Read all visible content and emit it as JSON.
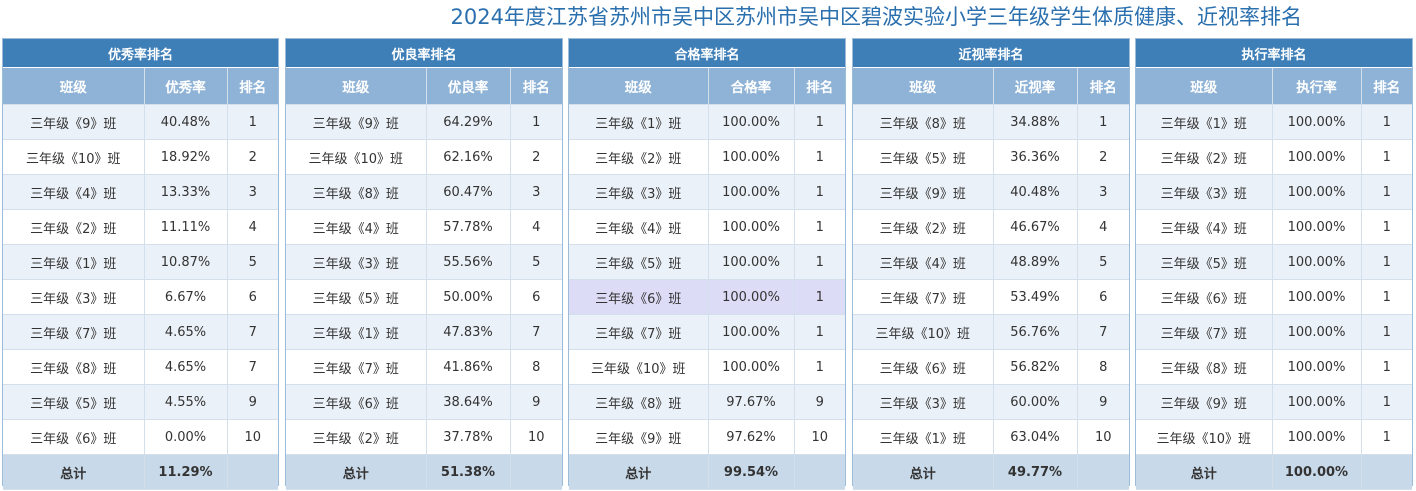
{
  "page_title": "2024年度江苏省苏州市吴中区苏州市吴中区碧波实验小学三年级学生体质健康、近视率排名",
  "panels": [
    {
      "title": "优秀率排名",
      "col_class": "班级",
      "col_rate": "优秀率",
      "col_rank": "排名",
      "rows": [
        {
          "cls": "三年级《9》班",
          "rate": "40.48%",
          "rank": "1"
        },
        {
          "cls": "三年级《10》班",
          "rate": "18.92%",
          "rank": "2"
        },
        {
          "cls": "三年级《4》班",
          "rate": "13.33%",
          "rank": "3"
        },
        {
          "cls": "三年级《2》班",
          "rate": "11.11%",
          "rank": "4"
        },
        {
          "cls": "三年级《1》班",
          "rate": "10.87%",
          "rank": "5"
        },
        {
          "cls": "三年级《3》班",
          "rate": "6.67%",
          "rank": "6"
        },
        {
          "cls": "三年级《7》班",
          "rate": "4.65%",
          "rank": "7"
        },
        {
          "cls": "三年级《8》班",
          "rate": "4.65%",
          "rank": "7"
        },
        {
          "cls": "三年级《5》班",
          "rate": "4.55%",
          "rank": "9"
        },
        {
          "cls": "三年级《6》班",
          "rate": "0.00%",
          "rank": "10"
        }
      ],
      "total_label": "总计",
      "total_value": "11.29%"
    },
    {
      "title": "优良率排名",
      "col_class": "班级",
      "col_rate": "优良率",
      "col_rank": "排名",
      "rows": [
        {
          "cls": "三年级《9》班",
          "rate": "64.29%",
          "rank": "1"
        },
        {
          "cls": "三年级《10》班",
          "rate": "62.16%",
          "rank": "2"
        },
        {
          "cls": "三年级《8》班",
          "rate": "60.47%",
          "rank": "3"
        },
        {
          "cls": "三年级《4》班",
          "rate": "57.78%",
          "rank": "4"
        },
        {
          "cls": "三年级《3》班",
          "rate": "55.56%",
          "rank": "5"
        },
        {
          "cls": "三年级《5》班",
          "rate": "50.00%",
          "rank": "6"
        },
        {
          "cls": "三年级《1》班",
          "rate": "47.83%",
          "rank": "7"
        },
        {
          "cls": "三年级《7》班",
          "rate": "41.86%",
          "rank": "8"
        },
        {
          "cls": "三年级《6》班",
          "rate": "38.64%",
          "rank": "9"
        },
        {
          "cls": "三年级《2》班",
          "rate": "37.78%",
          "rank": "10"
        }
      ],
      "total_label": "总计",
      "total_value": "51.38%"
    },
    {
      "title": "合格率排名",
      "col_class": "班级",
      "col_rate": "合格率",
      "col_rank": "排名",
      "rows": [
        {
          "cls": "三年级《1》班",
          "rate": "100.00%",
          "rank": "1"
        },
        {
          "cls": "三年级《2》班",
          "rate": "100.00%",
          "rank": "1"
        },
        {
          "cls": "三年级《3》班",
          "rate": "100.00%",
          "rank": "1"
        },
        {
          "cls": "三年级《4》班",
          "rate": "100.00%",
          "rank": "1"
        },
        {
          "cls": "三年级《5》班",
          "rate": "100.00%",
          "rank": "1"
        },
        {
          "cls": "三年级《6》班",
          "rate": "100.00%",
          "rank": "1"
        },
        {
          "cls": "三年级《7》班",
          "rate": "100.00%",
          "rank": "1"
        },
        {
          "cls": "三年级《10》班",
          "rate": "100.00%",
          "rank": "1"
        },
        {
          "cls": "三年级《8》班",
          "rate": "97.67%",
          "rank": "9"
        },
        {
          "cls": "三年级《9》班",
          "rate": "97.62%",
          "rank": "10"
        }
      ],
      "total_label": "总计",
      "total_value": "99.54%"
    },
    {
      "title": "近视率排名",
      "col_class": "班级",
      "col_rate": "近视率",
      "col_rank": "排名",
      "rows": [
        {
          "cls": "三年级《8》班",
          "rate": "34.88%",
          "rank": "1"
        },
        {
          "cls": "三年级《5》班",
          "rate": "36.36%",
          "rank": "2"
        },
        {
          "cls": "三年级《9》班",
          "rate": "40.48%",
          "rank": "3"
        },
        {
          "cls": "三年级《2》班",
          "rate": "46.67%",
          "rank": "4"
        },
        {
          "cls": "三年级《4》班",
          "rate": "48.89%",
          "rank": "5"
        },
        {
          "cls": "三年级《7》班",
          "rate": "53.49%",
          "rank": "6"
        },
        {
          "cls": "三年级《10》班",
          "rate": "56.76%",
          "rank": "7"
        },
        {
          "cls": "三年级《6》班",
          "rate": "56.82%",
          "rank": "8"
        },
        {
          "cls": "三年级《3》班",
          "rate": "60.00%",
          "rank": "9"
        },
        {
          "cls": "三年级《1》班",
          "rate": "63.04%",
          "rank": "10"
        }
      ],
      "total_label": "总计",
      "total_value": "49.77%"
    },
    {
      "title": "执行率排名",
      "col_class": "班级",
      "col_rate": "执行率",
      "col_rank": "排名",
      "rows": [
        {
          "cls": "三年级《1》班",
          "rate": "100.00%",
          "rank": "1"
        },
        {
          "cls": "三年级《2》班",
          "rate": "100.00%",
          "rank": "1"
        },
        {
          "cls": "三年级《3》班",
          "rate": "100.00%",
          "rank": "1"
        },
        {
          "cls": "三年级《4》班",
          "rate": "100.00%",
          "rank": "1"
        },
        {
          "cls": "三年级《5》班",
          "rate": "100.00%",
          "rank": "1"
        },
        {
          "cls": "三年级《6》班",
          "rate": "100.00%",
          "rank": "1"
        },
        {
          "cls": "三年级《7》班",
          "rate": "100.00%",
          "rank": "1"
        },
        {
          "cls": "三年级《8》班",
          "rate": "100.00%",
          "rank": "1"
        },
        {
          "cls": "三年级《9》班",
          "rate": "100.00%",
          "rank": "1"
        },
        {
          "cls": "三年级《10》班",
          "rate": "100.00%",
          "rank": "1"
        }
      ],
      "total_label": "总计",
      "total_value": "100.00%"
    }
  ]
}
